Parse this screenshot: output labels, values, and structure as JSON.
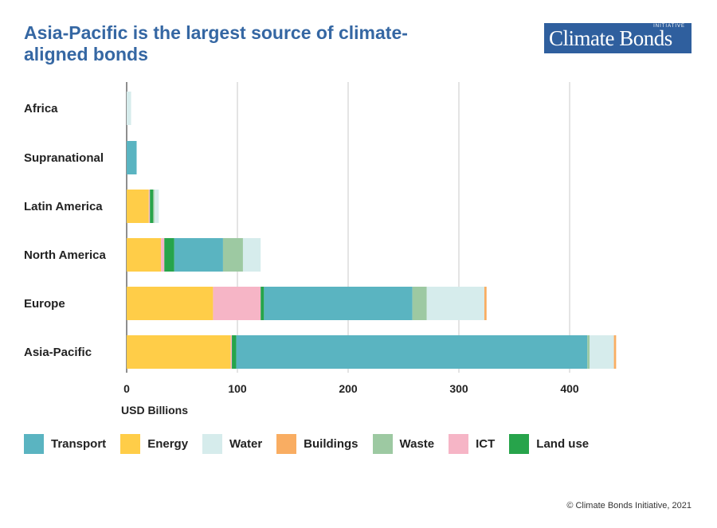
{
  "header": {
    "title": "Asia-Pacific is the largest source of climate-aligned bonds",
    "logo_small": "INITIATIVE",
    "logo_text": "Climate Bonds"
  },
  "footer": {
    "credit": "© Climate Bonds Initiative, 2021"
  },
  "colors": {
    "Transport": "#5ab4c1",
    "Energy": "#ffcd48",
    "Water": "#d6ecec",
    "Buildings": "#f9ad62",
    "Waste": "#9dc9a2",
    "ICT": "#f6b5c6",
    "Land use": "#27a44b",
    "brand": "#2f5f9e",
    "title": "#3567a3",
    "grid": "#c8c8c8"
  },
  "chart_data": {
    "type": "bar",
    "orientation": "horizontal",
    "stacked": true,
    "title": "Asia-Pacific is the largest source of climate-aligned bonds",
    "xlabel": "USD Billions",
    "ylabel": "",
    "xlim": [
      0,
      450
    ],
    "xticks": [
      0,
      100,
      200,
      300,
      400
    ],
    "grid": true,
    "legend_position": "bottom",
    "categories": [
      "Africa",
      "Supranational",
      "Latin America",
      "North America",
      "Europe",
      "Asia-Pacific"
    ],
    "series": [
      {
        "name": "Energy",
        "values": [
          0,
          0,
          20,
          31,
          78,
          94
        ]
      },
      {
        "name": "ICT",
        "values": [
          0,
          0,
          1,
          3,
          43,
          1
        ]
      },
      {
        "name": "Land use",
        "values": [
          0,
          0,
          3,
          9,
          3,
          4
        ]
      },
      {
        "name": "Transport",
        "values": [
          0,
          9,
          0,
          44,
          134,
          317
        ]
      },
      {
        "name": "Waste",
        "values": [
          0,
          0,
          1,
          18,
          13,
          2
        ]
      },
      {
        "name": "Water",
        "values": [
          4,
          0,
          4,
          16,
          52,
          22
        ]
      },
      {
        "name": "Buildings",
        "values": [
          0,
          0,
          0,
          0,
          2,
          2
        ]
      }
    ]
  },
  "legend": [
    "Transport",
    "Energy",
    "Water",
    "Buildings",
    "Waste",
    "ICT",
    "Land use"
  ]
}
